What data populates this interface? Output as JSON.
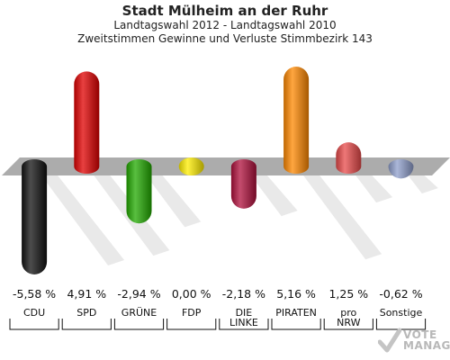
{
  "title": "Stadt Mülheim an der Ruhr",
  "subtitle_1": "Landtagswahl 2012 - Landtagswahl 2010",
  "subtitle_2": "Zweitstimmen Gewinne und Verluste Stimmbezirk 143",
  "brand": {
    "line1": "VOTE",
    "line2": "MANAGER"
  },
  "chart_data": {
    "type": "bar",
    "title": "Stadt Mülheim an der Ruhr",
    "categories": [
      "CDU",
      "SPD",
      "GRÜNE",
      "FDP",
      "DIE LINKE",
      "PIRATEN",
      "pro NRW",
      "Sonstige"
    ],
    "category_lines": [
      [
        "CDU"
      ],
      [
        "SPD"
      ],
      [
        "GRÜNE"
      ],
      [
        "FDP"
      ],
      [
        "DIE",
        "LINKE"
      ],
      [
        "PIRATEN"
      ],
      [
        "pro",
        "NRW"
      ],
      [
        "Sonstige"
      ]
    ],
    "values": [
      -5.58,
      4.91,
      -2.94,
      0.0,
      -2.18,
      5.16,
      1.25,
      -0.62
    ],
    "value_labels": [
      "-5,58 %",
      "4,91 %",
      "-2,94 %",
      "0,00 %",
      "-2,18 %",
      "5,16 %",
      "1,25 %",
      "-0,62 %"
    ],
    "colors": [
      "#111111",
      "#e00000",
      "#22aa00",
      "#ffee00",
      "#b0103c",
      "#ff8800",
      "#e84a4a",
      "#8f9fcc"
    ],
    "ylim": [
      -6,
      6
    ],
    "grid": false,
    "legend": "none"
  }
}
